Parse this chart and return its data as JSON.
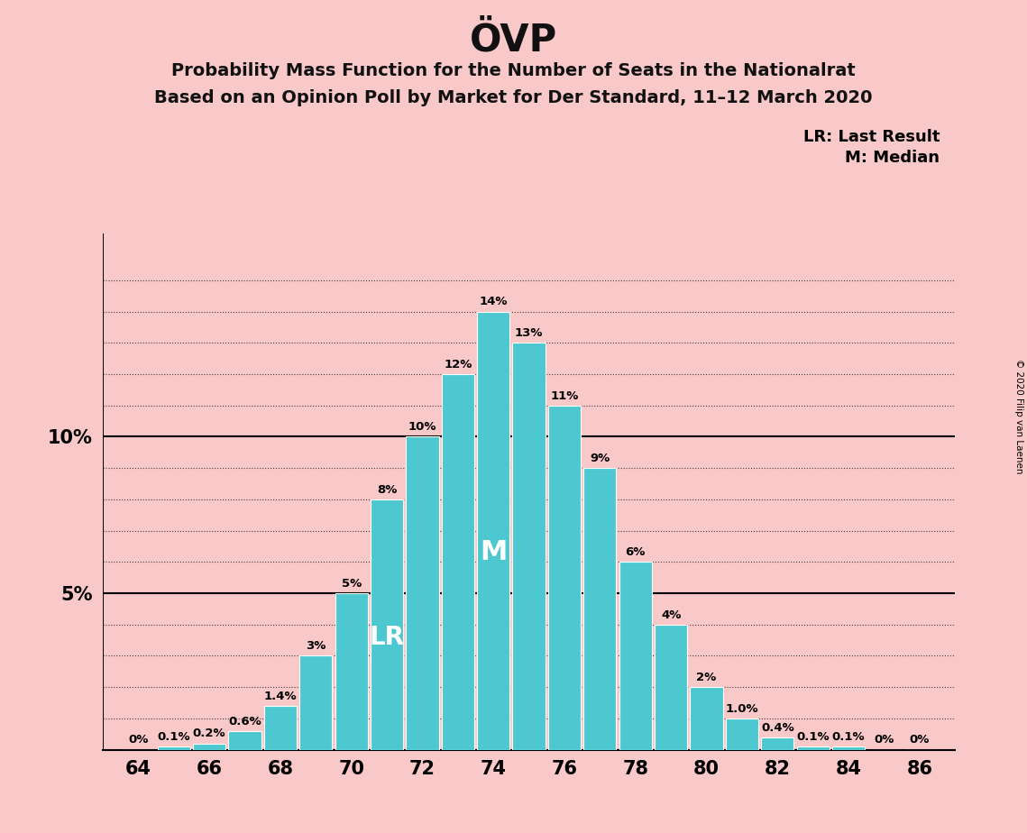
{
  "title": "ÖVP",
  "subtitle1": "Probability Mass Function for the Number of Seats in the Nationalrat",
  "subtitle2": "Based on an Opinion Poll by Market for Der Standard, 11–12 March 2020",
  "seats": [
    64,
    65,
    66,
    67,
    68,
    69,
    70,
    71,
    72,
    73,
    74,
    75,
    76,
    77,
    78,
    79,
    80,
    81,
    82,
    83,
    84,
    85,
    86
  ],
  "probs": [
    0.0,
    0.1,
    0.2,
    0.6,
    1.4,
    3.0,
    5.0,
    8.0,
    10.0,
    12.0,
    14.0,
    13.0,
    11.0,
    9.0,
    6.0,
    4.0,
    2.0,
    1.0,
    0.4,
    0.1,
    0.1,
    0.0,
    0.0
  ],
  "bar_labels": [
    "0%",
    "0.1%",
    "0.2%",
    "0.6%",
    "1.4%",
    "3%",
    "5%",
    "8%",
    "10%",
    "12%",
    "14%",
    "13%",
    "11%",
    "9%",
    "6%",
    "4%",
    "2%",
    "1.0%",
    "0.4%",
    "0.1%",
    "0.1%",
    "0%",
    "0%"
  ],
  "bar_color": "#4DC8D0",
  "background_color": "#F9C8C8",
  "title_color": "#111111",
  "last_result_seat": 71,
  "median_seat": 74,
  "lr_label": "LR",
  "m_label": "M",
  "legend_lr": "LR: Last Result",
  "legend_m": "M: Median",
  "xlabel_seats": [
    64,
    66,
    68,
    70,
    72,
    74,
    76,
    78,
    80,
    82,
    84,
    86
  ],
  "ylim_max": 16.5,
  "copyright": "© 2020 Filip van Laenen"
}
